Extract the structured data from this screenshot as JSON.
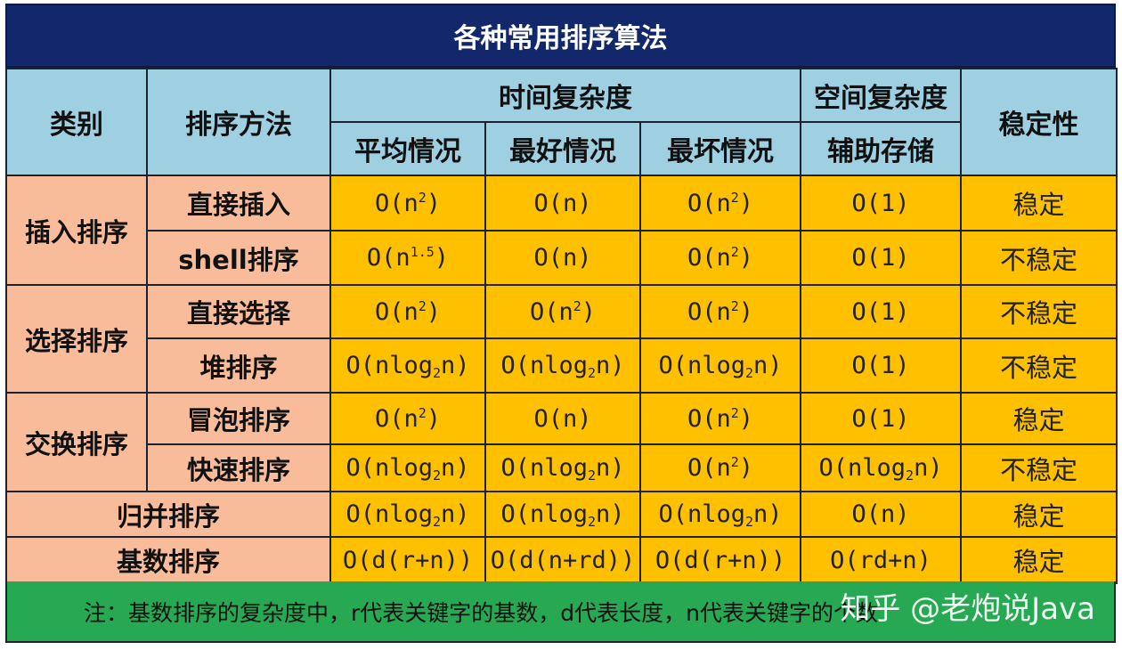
{
  "title": "各种常用排序算法",
  "headers": {
    "category": "类别",
    "method": "排序方法",
    "time_complexity": "时间复杂度",
    "space_complexity": "空间复杂度",
    "stability": "稳定性",
    "average": "平均情况",
    "best": "最好情况",
    "worst": "最坏情况",
    "auxiliary": "辅助存储"
  },
  "categories": {
    "insertion": "插入排序",
    "selection": "选择排序",
    "exchange": "交换排序",
    "merge": "归并排序",
    "radix": "基数排序"
  },
  "rows": [
    {
      "method": "直接插入",
      "average": [
        "O(n",
        "2",
        ")"
      ],
      "best": "O(n)",
      "worst": [
        "O(n",
        "2",
        ")"
      ],
      "space": "O(1)",
      "stability": "稳定"
    },
    {
      "method": "shell排序",
      "average": [
        "O(n",
        "1.5",
        ")"
      ],
      "best": "O(n)",
      "worst": [
        "O(n",
        "2",
        ")"
      ],
      "space": "O(1)",
      "stability": "不稳定"
    },
    {
      "method": "直接选择",
      "average": [
        "O(n",
        "2",
        ")"
      ],
      "best": [
        "O(n",
        "2",
        ")"
      ],
      "worst": [
        "O(n",
        "2",
        ")"
      ],
      "space": "O(1)",
      "stability": "不稳定"
    },
    {
      "method": "堆排序",
      "average": [
        "O(nlog",
        "2",
        "n)"
      ],
      "best": [
        "O(nlog",
        "2",
        "n)"
      ],
      "worst": [
        "O(nlog",
        "2",
        "n)"
      ],
      "space": "O(1)",
      "stability": "不稳定"
    },
    {
      "method": "冒泡排序",
      "average": [
        "O(n",
        "2",
        ")"
      ],
      "best": "O(n)",
      "worst": [
        "O(n",
        "2",
        ")"
      ],
      "space": "O(1)",
      "stability": "稳定"
    },
    {
      "method": "快速排序",
      "average": [
        "O(nlog",
        "2",
        "n)"
      ],
      "best": [
        "O(nlog",
        "2",
        "n)"
      ],
      "worst": [
        "O(n",
        "2",
        ")"
      ],
      "space": [
        "O(nlog",
        "2",
        "n)"
      ],
      "stability": "不稳定"
    },
    {
      "average": [
        "O(nlog",
        "2",
        "n)"
      ],
      "best": [
        "O(nlog",
        "2",
        "n)"
      ],
      "worst": [
        "O(nlog",
        "2",
        "n)"
      ],
      "space": "O(n)",
      "stability": "稳定"
    },
    {
      "average": "O(d(r+n))",
      "best": "O(d(n+rd))",
      "worst": "O(d(r+n))",
      "space": "O(rd+n)",
      "stability": "稳定"
    }
  ],
  "note": "注：基数排序的复杂度中，r代表关键字的基数，d代表长度，n代表关键字的个数",
  "watermark": "知乎 @老炮说Java"
}
